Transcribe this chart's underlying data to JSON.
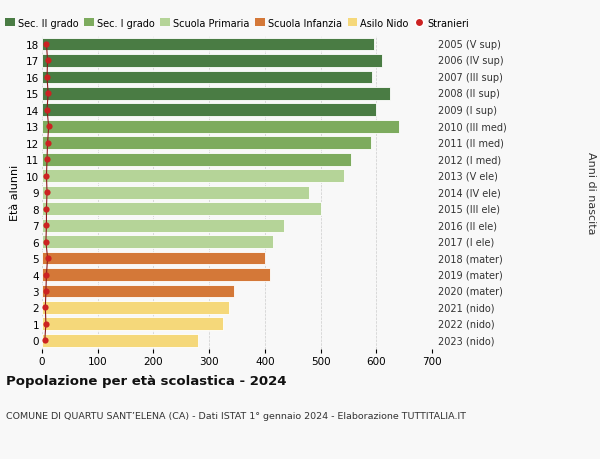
{
  "ages": [
    18,
    17,
    16,
    15,
    14,
    13,
    12,
    11,
    10,
    9,
    8,
    7,
    6,
    5,
    4,
    3,
    2,
    1,
    0
  ],
  "years_labels": [
    "2005 (V sup)",
    "2006 (IV sup)",
    "2007 (III sup)",
    "2008 (II sup)",
    "2009 (I sup)",
    "2010 (III med)",
    "2011 (II med)",
    "2012 (I med)",
    "2013 (V ele)",
    "2014 (IV ele)",
    "2015 (III ele)",
    "2016 (II ele)",
    "2017 (I ele)",
    "2018 (mater)",
    "2019 (mater)",
    "2020 (mater)",
    "2021 (nido)",
    "2022 (nido)",
    "2023 (nido)"
  ],
  "bar_values": [
    595,
    610,
    592,
    625,
    600,
    640,
    590,
    555,
    542,
    480,
    500,
    435,
    415,
    400,
    410,
    345,
    335,
    325,
    280
  ],
  "stranieri_values": [
    8,
    10,
    9,
    11,
    9,
    12,
    10,
    9,
    8,
    9,
    8,
    8,
    7,
    10,
    8,
    7,
    6,
    7,
    5
  ],
  "bar_colors": [
    "#4a7c44",
    "#4a7c44",
    "#4a7c44",
    "#4a7c44",
    "#4a7c44",
    "#7dab5e",
    "#7dab5e",
    "#7dab5e",
    "#b5d498",
    "#b5d498",
    "#b5d498",
    "#b5d498",
    "#b5d498",
    "#d47838",
    "#d47838",
    "#d47838",
    "#f5d87a",
    "#f5d87a",
    "#f5d87a"
  ],
  "legend_labels": [
    "Sec. II grado",
    "Sec. I grado",
    "Scuola Primaria",
    "Scuola Infanzia",
    "Asilo Nido",
    "Stranieri"
  ],
  "legend_colors": [
    "#4a7c44",
    "#7dab5e",
    "#b5d498",
    "#d47838",
    "#f5d87a",
    "#cc2222"
  ],
  "ylabel_left": "Età alunni",
  "ylabel_right": "Anni di nascita",
  "xlim": [
    0,
    700
  ],
  "xticks": [
    0,
    100,
    200,
    300,
    400,
    500,
    600,
    700
  ],
  "title_bold": "Popolazione per età scolastica - 2024",
  "subtitle": "COMUNE DI QUARTU SANT’ELENA (CA) - Dati ISTAT 1° gennaio 2024 - Elaborazione TUTTITALIA.IT",
  "bg_color": "#f8f8f8",
  "stranieri_color": "#cc2222",
  "stranieri_line_color": "#8b1a1a"
}
